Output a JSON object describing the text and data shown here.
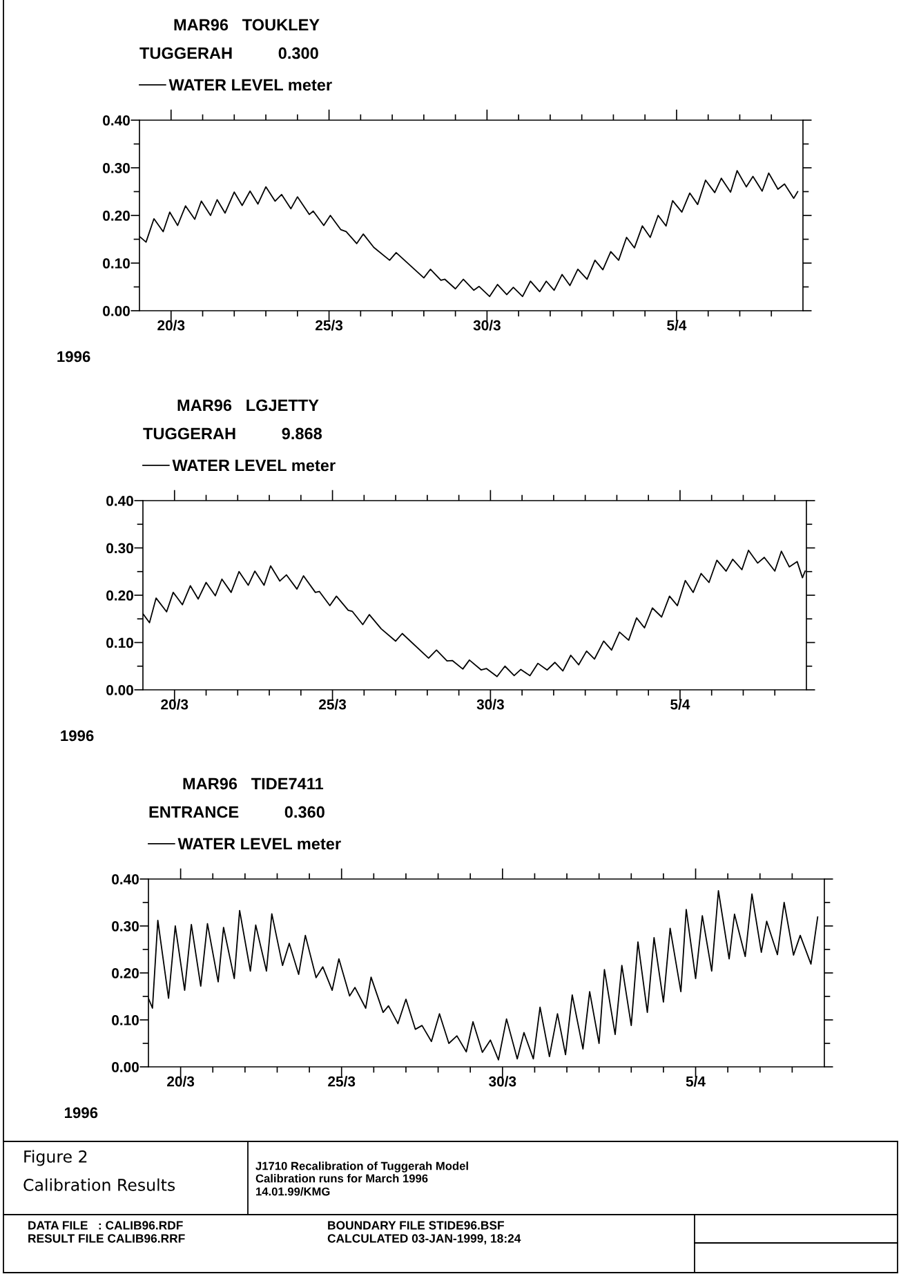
{
  "chart_data": [
    {
      "type": "line",
      "title": "MAR96   TOUKLEY",
      "subtitle": "TUGGERAH          0.300",
      "xlabel": "1996",
      "legend": "top left",
      "xlim": [
        "1996-03-19T00:00",
        "1996-04-09T00:00"
      ],
      "ylim": [
        0,
        0.4
      ],
      "xticks": [
        {
          "value": "1996-03-20",
          "label": "20/3"
        },
        {
          "value": "1996-03-21",
          "label": null
        },
        {
          "value": "1996-03-22",
          "label": null
        },
        {
          "value": "1996-03-23",
          "label": null
        },
        {
          "value": "1996-03-24",
          "label": null
        },
        {
          "value": "1996-03-25",
          "label": "25/3"
        },
        {
          "value": "1996-03-26",
          "label": null
        },
        {
          "value": "1996-03-27",
          "label": null
        },
        {
          "value": "1996-03-28",
          "label": null
        },
        {
          "value": "1996-03-29",
          "label": null
        },
        {
          "value": "1996-03-30",
          "label": "30/3"
        },
        {
          "value": "1996-03-31",
          "label": null
        },
        {
          "value": "1996-04-01",
          "label": null
        },
        {
          "value": "1996-04-02",
          "label": null
        },
        {
          "value": "1996-04-03",
          "label": null
        },
        {
          "value": "1996-04-04",
          "label": null
        },
        {
          "value": "1996-04-05",
          "label": "5/4"
        },
        {
          "value": "1996-04-06",
          "label": null
        },
        {
          "value": "1996-04-07",
          "label": null
        },
        {
          "value": "1996-04-08",
          "label": null
        }
      ],
      "yticks": [
        {
          "value": 0,
          "label": "0.00"
        },
        {
          "value": 0.05,
          "label": null
        },
        {
          "value": 0.1,
          "label": "0.10"
        },
        {
          "value": 0.15,
          "label": null
        },
        {
          "value": 0.2,
          "label": "0.20"
        },
        {
          "value": 0.25,
          "label": null
        },
        {
          "value": 0.3,
          "label": "0.30"
        },
        {
          "value": 0.35,
          "label": null
        },
        {
          "value": 0.4,
          "label": "0.40"
        }
      ],
      "series": [
        {
          "name": "WATER LEVEL meter",
          "color": "#000000",
          "x": [
            "1996-03-19T00:00",
            "1996-03-19T05:00",
            "1996-03-19T11:00",
            "1996-03-19T18:00",
            "1996-03-19T23:00",
            "1996-03-20T05:00",
            "1996-03-20T11:00",
            "1996-03-20T18:00",
            "1996-03-20T23:00",
            "1996-03-21T06:00",
            "1996-03-21T11:00",
            "1996-03-21T17:00",
            "1996-03-22T00:00",
            "1996-03-22T06:00",
            "1996-03-22T12:00",
            "1996-03-22T18:00",
            "1996-03-23T00:00",
            "1996-03-23T07:00",
            "1996-03-23T12:00",
            "1996-03-23T19:00",
            "1996-03-24T00:00",
            "1996-03-24T09:00",
            "1996-03-24T12:00",
            "1996-03-24T20:00",
            "1996-03-25T01:00",
            "1996-03-25T09:00",
            "1996-03-25T13:00",
            "1996-03-25T21:00",
            "1996-03-26T02:00",
            "1996-03-26T10:00",
            "1996-03-26T22:00",
            "1996-03-27T03:00",
            "1996-03-28T00:00",
            "1996-03-28T05:00",
            "1996-03-28T13:00",
            "1996-03-28T16:00",
            "1996-03-29T00:00",
            "1996-03-29T06:00",
            "1996-03-29T14:00",
            "1996-03-29T18:00",
            "1996-03-30T02:00",
            "1996-03-30T08:00",
            "1996-03-30T15:00",
            "1996-03-30T20:00",
            "1996-03-31T03:00",
            "1996-03-31T09:00",
            "1996-03-31T16:00",
            "1996-03-31T21:00",
            "1996-04-01T03:00",
            "1996-04-01T09:00",
            "1996-04-01T15:00",
            "1996-04-01T21:00",
            "1996-04-02T04:00",
            "1996-04-02T10:00",
            "1996-04-02T16:00",
            "1996-04-02T22:00",
            "1996-04-03T04:00",
            "1996-04-03T10:00",
            "1996-04-03T16:00",
            "1996-04-03T22:00",
            "1996-04-04T04:00",
            "1996-04-04T10:00",
            "1996-04-04T16:00",
            "1996-04-04T21:00",
            "1996-04-05T04:00",
            "1996-04-05T10:00",
            "1996-04-05T16:00",
            "1996-04-05T22:00",
            "1996-04-06T05:00",
            "1996-04-06T10:00",
            "1996-04-06T17:00",
            "1996-04-06T22:00",
            "1996-04-07T05:00",
            "1996-04-07T10:00",
            "1996-04-07T17:00",
            "1996-04-07T22:00",
            "1996-04-08T05:00",
            "1996-04-08T10:00",
            "1996-04-08T17:00",
            "1996-04-08T20:00"
          ],
          "values": [
            0.156,
            0.144,
            0.193,
            0.166,
            0.207,
            0.179,
            0.22,
            0.192,
            0.23,
            0.2,
            0.233,
            0.205,
            0.249,
            0.221,
            0.251,
            0.224,
            0.26,
            0.23,
            0.244,
            0.214,
            0.239,
            0.202,
            0.209,
            0.179,
            0.2,
            0.17,
            0.166,
            0.141,
            0.161,
            0.133,
            0.106,
            0.122,
            0.069,
            0.087,
            0.064,
            0.066,
            0.046,
            0.066,
            0.043,
            0.051,
            0.03,
            0.055,
            0.034,
            0.049,
            0.03,
            0.062,
            0.04,
            0.062,
            0.043,
            0.076,
            0.053,
            0.087,
            0.066,
            0.106,
            0.086,
            0.124,
            0.106,
            0.154,
            0.132,
            0.178,
            0.154,
            0.2,
            0.178,
            0.231,
            0.207,
            0.247,
            0.223,
            0.274,
            0.248,
            0.278,
            0.249,
            0.294,
            0.26,
            0.282,
            0.251,
            0.289,
            0.255,
            0.266,
            0.236,
            0.25
          ]
        }
      ]
    },
    {
      "type": "line",
      "title": "MAR96   LGJETTY",
      "subtitle": "TUGGERAH          9.868",
      "xlabel": "1996",
      "legend": "top left",
      "xlim": [
        "1996-03-19T00:00",
        "1996-04-09T00:00"
      ],
      "ylim": [
        0,
        0.4
      ],
      "xticks": [
        {
          "value": "1996-03-20",
          "label": "20/3"
        },
        {
          "value": "1996-03-21",
          "label": null
        },
        {
          "value": "1996-03-22",
          "label": null
        },
        {
          "value": "1996-03-23",
          "label": null
        },
        {
          "value": "1996-03-24",
          "label": null
        },
        {
          "value": "1996-03-25",
          "label": "25/3"
        },
        {
          "value": "1996-03-26",
          "label": null
        },
        {
          "value": "1996-03-27",
          "label": null
        },
        {
          "value": "1996-03-28",
          "label": null
        },
        {
          "value": "1996-03-29",
          "label": null
        },
        {
          "value": "1996-03-30",
          "label": "30/3"
        },
        {
          "value": "1996-03-31",
          "label": null
        },
        {
          "value": "1996-04-01",
          "label": null
        },
        {
          "value": "1996-04-02",
          "label": null
        },
        {
          "value": "1996-04-03",
          "label": null
        },
        {
          "value": "1996-04-04",
          "label": null
        },
        {
          "value": "1996-04-05",
          "label": "5/4"
        },
        {
          "value": "1996-04-06",
          "label": null
        },
        {
          "value": "1996-04-07",
          "label": null
        },
        {
          "value": "1996-04-08",
          "label": null
        }
      ],
      "yticks": [
        {
          "value": 0,
          "label": "0.00"
        },
        {
          "value": 0.05,
          "label": null
        },
        {
          "value": 0.1,
          "label": "0.10"
        },
        {
          "value": 0.15,
          "label": null
        },
        {
          "value": 0.2,
          "label": "0.20"
        },
        {
          "value": 0.25,
          "label": null
        },
        {
          "value": 0.3,
          "label": "0.30"
        },
        {
          "value": 0.35,
          "label": null
        },
        {
          "value": 0.4,
          "label": "0.40"
        }
      ],
      "series": [
        {
          "name": "WATER LEVEL meter",
          "color": "#000000",
          "x": [
            "1996-03-19T00:00",
            "1996-03-19T05:00",
            "1996-03-19T10:00",
            "1996-03-19T18:00",
            "1996-03-19T23:00",
            "1996-03-20T06:00",
            "1996-03-20T12:00",
            "1996-03-20T18:00",
            "1996-03-21T00:00",
            "1996-03-21T07:00",
            "1996-03-21T12:00",
            "1996-03-21T19:00",
            "1996-03-22T01:00",
            "1996-03-22T08:00",
            "1996-03-22T13:00",
            "1996-03-22T20:00",
            "1996-03-23T01:00",
            "1996-03-23T08:00",
            "1996-03-23T13:00",
            "1996-03-23T21:00",
            "1996-03-24T02:00",
            "1996-03-24T11:00",
            "1996-03-24T14:00",
            "1996-03-24T22:00",
            "1996-03-25T03:00",
            "1996-03-25T12:00",
            "1996-03-25T15:00",
            "1996-03-25T23:00",
            "1996-03-26T04:00",
            "1996-03-26T13:00",
            "1996-03-27T00:00",
            "1996-03-27T05:00",
            "1996-03-28T01:00",
            "1996-03-28T07:00",
            "1996-03-28T15:00",
            "1996-03-28T19:00",
            "1996-03-29T03:00",
            "1996-03-29T08:00",
            "1996-03-29T17:00",
            "1996-03-29T21:00",
            "1996-03-30T05:00",
            "1996-03-30T11:00",
            "1996-03-30T18:00",
            "1996-03-30T23:00",
            "1996-03-31T06:00",
            "1996-03-31T12:00",
            "1996-03-31T19:00",
            "1996-04-01T01:00",
            "1996-04-01T07:00",
            "1996-04-01T13:00",
            "1996-04-01T19:00",
            "1996-04-02T01:00",
            "1996-04-02T07:00",
            "1996-04-02T14:00",
            "1996-04-02T20:00",
            "1996-04-03T02:00",
            "1996-04-03T09:00",
            "1996-04-03T15:00",
            "1996-04-03T21:00",
            "1996-04-04T03:00",
            "1996-04-04T10:00",
            "1996-04-04T16:00",
            "1996-04-04T22:00",
            "1996-04-05T04:00",
            "1996-04-05T10:00",
            "1996-04-05T16:00",
            "1996-04-05T22:00",
            "1996-04-06T04:00",
            "1996-04-06T11:00",
            "1996-04-06T16:00",
            "1996-04-06T23:00",
            "1996-04-07T04:00",
            "1996-04-07T11:00",
            "1996-04-07T16:00",
            "1996-04-08T00:00",
            "1996-04-08T05:00",
            "1996-04-08T11:00",
            "1996-04-08T17:00",
            "1996-04-08T21:00",
            "1996-04-08T23:00"
          ],
          "values": [
            0.161,
            0.142,
            0.194,
            0.165,
            0.206,
            0.18,
            0.22,
            0.192,
            0.227,
            0.199,
            0.234,
            0.206,
            0.25,
            0.221,
            0.251,
            0.221,
            0.262,
            0.23,
            0.243,
            0.213,
            0.241,
            0.206,
            0.208,
            0.178,
            0.198,
            0.168,
            0.166,
            0.138,
            0.159,
            0.129,
            0.103,
            0.119,
            0.067,
            0.084,
            0.061,
            0.062,
            0.044,
            0.063,
            0.042,
            0.045,
            0.028,
            0.05,
            0.03,
            0.043,
            0.03,
            0.056,
            0.042,
            0.058,
            0.04,
            0.073,
            0.053,
            0.082,
            0.065,
            0.103,
            0.084,
            0.122,
            0.105,
            0.152,
            0.131,
            0.173,
            0.154,
            0.198,
            0.178,
            0.231,
            0.206,
            0.246,
            0.227,
            0.274,
            0.251,
            0.276,
            0.254,
            0.295,
            0.268,
            0.28,
            0.251,
            0.293,
            0.26,
            0.271,
            0.237,
            0.251
          ]
        }
      ]
    },
    {
      "type": "line",
      "title": "MAR96   TIDE7411",
      "subtitle": "ENTRANCE          0.360",
      "xlabel": "1996",
      "legend": "top left",
      "xlim": [
        "1996-03-19T00:00",
        "1996-04-09T00:00"
      ],
      "ylim": [
        0,
        0.4
      ],
      "xticks": [
        {
          "value": "1996-03-20",
          "label": "20/3"
        },
        {
          "value": "1996-03-21",
          "label": null
        },
        {
          "value": "1996-03-22",
          "label": null
        },
        {
          "value": "1996-03-23",
          "label": null
        },
        {
          "value": "1996-03-24",
          "label": null
        },
        {
          "value": "1996-03-25",
          "label": "25/3"
        },
        {
          "value": "1996-03-26",
          "label": null
        },
        {
          "value": "1996-03-27",
          "label": null
        },
        {
          "value": "1996-03-28",
          "label": null
        },
        {
          "value": "1996-03-29",
          "label": null
        },
        {
          "value": "1996-03-30",
          "label": "30/3"
        },
        {
          "value": "1996-03-31",
          "label": null
        },
        {
          "value": "1996-04-01",
          "label": null
        },
        {
          "value": "1996-04-02",
          "label": null
        },
        {
          "value": "1996-04-03",
          "label": null
        },
        {
          "value": "1996-04-04",
          "label": null
        },
        {
          "value": "1996-04-05",
          "label": "5/4"
        },
        {
          "value": "1996-04-06",
          "label": null
        },
        {
          "value": "1996-04-07",
          "label": null
        },
        {
          "value": "1996-04-08",
          "label": null
        }
      ],
      "yticks": [
        {
          "value": 0,
          "label": "0.00"
        },
        {
          "value": 0.05,
          "label": null
        },
        {
          "value": 0.1,
          "label": "0.10"
        },
        {
          "value": 0.15,
          "label": null
        },
        {
          "value": 0.2,
          "label": "0.20"
        },
        {
          "value": 0.25,
          "label": null
        },
        {
          "value": 0.3,
          "label": "0.30"
        },
        {
          "value": 0.35,
          "label": null
        },
        {
          "value": 0.4,
          "label": "0.40"
        }
      ],
      "series": [
        {
          "name": "WATER LEVEL meter",
          "color": "#000000",
          "x": [
            "1996-03-19T00:00",
            "1996-03-19T03:00",
            "1996-03-19T07:00",
            "1996-03-19T15:00",
            "1996-03-19T20:00",
            "1996-03-20T03:00",
            "1996-03-20T08:00",
            "1996-03-20T15:00",
            "1996-03-20T20:00",
            "1996-03-21T04:00",
            "1996-03-21T08:00",
            "1996-03-21T16:00",
            "1996-03-21T20:00",
            "1996-03-22T04:00",
            "1996-03-22T08:00",
            "1996-03-22T16:00",
            "1996-03-22T20:00",
            "1996-03-23T04:00",
            "1996-03-23T09:00",
            "1996-03-23T16:00",
            "1996-03-23T21:00",
            "1996-03-24T05:00",
            "1996-03-24T10:00",
            "1996-03-24T17:00",
            "1996-03-24T22:00",
            "1996-03-25T06:00",
            "1996-03-25T10:00",
            "1996-03-25T18:00",
            "1996-03-25T22:00",
            "1996-03-26T07:00",
            "1996-03-26T11:00",
            "1996-03-26T18:00",
            "1996-03-27T00:00",
            "1996-03-27T07:00",
            "1996-03-27T12:00",
            "1996-03-27T19:00",
            "1996-03-28T01:00",
            "1996-03-28T08:00",
            "1996-03-28T14:00",
            "1996-03-28T21:00",
            "1996-03-29T02:00",
            "1996-03-29T09:00",
            "1996-03-29T15:00",
            "1996-03-29T21:00",
            "1996-03-30T03:00",
            "1996-03-30T11:00",
            "1996-03-30T16:00",
            "1996-03-30T23:00",
            "1996-03-31T04:00",
            "1996-03-31T11:00",
            "1996-03-31T17:00",
            "1996-03-31T23:00",
            "1996-04-01T04:00",
            "1996-04-01T12:00",
            "1996-04-01T17:00",
            "1996-04-02T00:00",
            "1996-04-02T04:00",
            "1996-04-02T12:00",
            "1996-04-02T17:00",
            "1996-04-03T00:00",
            "1996-04-03T05:00",
            "1996-04-03T12:00",
            "1996-04-03T17:00",
            "1996-04-04T00:00",
            "1996-04-04T05:00",
            "1996-04-04T13:00",
            "1996-04-04T17:00",
            "1996-04-05T00:00",
            "1996-04-05T05:00",
            "1996-04-05T12:00",
            "1996-04-05T17:00",
            "1996-04-06T01:00",
            "1996-04-06T05:00",
            "1996-04-06T13:00",
            "1996-04-06T18:00",
            "1996-04-07T01:00",
            "1996-04-07T05:00",
            "1996-04-07T13:00",
            "1996-04-07T18:00",
            "1996-04-08T01:00",
            "1996-04-08T06:00",
            "1996-04-08T14:00",
            "1996-04-08T19:00"
          ],
          "values": [
            0.146,
            0.125,
            0.312,
            0.146,
            0.3,
            0.163,
            0.303,
            0.172,
            0.305,
            0.181,
            0.297,
            0.188,
            0.333,
            0.204,
            0.302,
            0.204,
            0.326,
            0.216,
            0.263,
            0.197,
            0.28,
            0.19,
            0.213,
            0.163,
            0.23,
            0.151,
            0.169,
            0.125,
            0.191,
            0.116,
            0.13,
            0.092,
            0.144,
            0.08,
            0.088,
            0.054,
            0.113,
            0.05,
            0.066,
            0.032,
            0.096,
            0.031,
            0.057,
            0.015,
            0.102,
            0.017,
            0.073,
            0.017,
            0.127,
            0.022,
            0.113,
            0.026,
            0.153,
            0.038,
            0.16,
            0.05,
            0.207,
            0.069,
            0.216,
            0.088,
            0.266,
            0.116,
            0.275,
            0.138,
            0.295,
            0.16,
            0.335,
            0.188,
            0.322,
            0.204,
            0.375,
            0.23,
            0.325,
            0.235,
            0.368,
            0.244,
            0.31,
            0.239,
            0.35,
            0.238,
            0.28,
            0.219,
            0.319
          ]
        }
      ],
      "annotations": [
        "Figure 2",
        "Calibration Results",
        "J1710 Recalibration of Tuggerah Model",
        "Calibration runs for March 1996",
        "14.01.99/KMG",
        "DATA FILE   : CALIB96.RDF",
        "RESULT FILE CALIB96.RRF",
        "BOUNDARY FILE STIDE96.BSF",
        "CALCULATED 03-JAN-1999, 18:24"
      ]
    }
  ]
}
